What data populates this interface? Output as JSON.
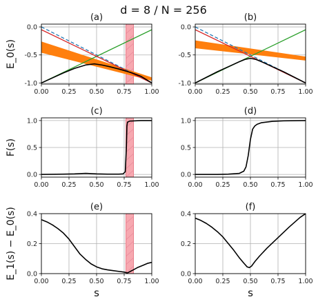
{
  "suptitle": "d = 8 / N = 256",
  "chart_data": [
    {
      "id": "a",
      "title": "(a)",
      "type": "line",
      "ylabel": "E_0(s)",
      "xlabel": "",
      "xlim": [
        0,
        1
      ],
      "ylim": [
        -1.02,
        0.05
      ],
      "xticks": [
        0,
        0.25,
        0.5,
        0.75,
        1.0
      ],
      "xticklabels": [
        "0.00",
        "0.25",
        "0.50",
        "0.75",
        "1.00"
      ],
      "yticks": [
        0,
        -0.5,
        -1.0
      ],
      "yticklabels": [
        "0.0",
        "-0.5",
        "-1.0"
      ],
      "grid": true,
      "shaded_region": {
        "x": [
          0.765,
          0.835
        ],
        "color": "#f7a8b0"
      },
      "bands": [
        {
          "color": "#ff7f0e",
          "x": [
            0,
            1
          ],
          "upper": [
            -0.26,
            -0.9
          ],
          "lower": [
            -0.46,
            -0.96
          ]
        }
      ],
      "series": [
        {
          "color": "#1f77b4",
          "dash": true,
          "x": [
            0,
            1
          ],
          "y": [
            0,
            -1
          ]
        },
        {
          "color": "#2ca02c",
          "x": [
            0,
            1
          ],
          "y": [
            -1,
            -0.05
          ]
        },
        {
          "color": "#d62728",
          "x": [
            0,
            1
          ],
          "y": [
            -0.05,
            -1
          ]
        },
        {
          "color": "#000000",
          "x": [
            0,
            0.1,
            0.2,
            0.3,
            0.4,
            0.48,
            0.55,
            0.62,
            0.7,
            0.77,
            0.82,
            0.9,
            1.0
          ],
          "y": [
            -1.0,
            -0.91,
            -0.82,
            -0.74,
            -0.68,
            -0.66,
            -0.68,
            -0.71,
            -0.75,
            -0.79,
            -0.82,
            -0.88,
            -1.0
          ]
        }
      ]
    },
    {
      "id": "b",
      "title": "(b)",
      "type": "line",
      "ylabel": "",
      "xlabel": "",
      "xlim": [
        0,
        1
      ],
      "ylim": [
        -1.02,
        0.05
      ],
      "xticks": [
        0,
        0.25,
        0.5,
        0.75,
        1.0
      ],
      "xticklabels": [
        "0.00",
        "0.25",
        "0.50",
        "0.75",
        "1.00"
      ],
      "yticks": [
        0,
        -0.5,
        -1.0
      ],
      "yticklabels": [
        "0.0",
        "-0.5",
        "-1.0"
      ],
      "grid": true,
      "bands": [
        {
          "color": "#ff7f0e",
          "x": [
            0,
            1
          ],
          "upper": [
            -0.24,
            -0.53
          ],
          "lower": [
            -0.38,
            -0.6
          ]
        }
      ],
      "series": [
        {
          "color": "#1f77b4",
          "dash": true,
          "x": [
            0,
            1
          ],
          "y": [
            0,
            -1
          ]
        },
        {
          "color": "#2ca02c",
          "x": [
            0,
            1
          ],
          "y": [
            -1,
            -0.05
          ]
        },
        {
          "color": "#d62728",
          "x": [
            0,
            1
          ],
          "y": [
            -0.05,
            -1
          ]
        },
        {
          "color": "#000000",
          "x": [
            0,
            0.1,
            0.2,
            0.3,
            0.4,
            0.45,
            0.5,
            0.55,
            0.6,
            0.7,
            0.8,
            0.9,
            1.0
          ],
          "y": [
            -1.0,
            -0.9,
            -0.8,
            -0.71,
            -0.62,
            -0.58,
            -0.56,
            -0.58,
            -0.62,
            -0.71,
            -0.8,
            -0.9,
            -1.0
          ]
        }
      ]
    },
    {
      "id": "c",
      "title": "(c)",
      "type": "line",
      "ylabel": "F(s)",
      "xlabel": "",
      "xlim": [
        0,
        1
      ],
      "ylim": [
        -0.05,
        1.05
      ],
      "xticks": [
        0,
        0.25,
        0.5,
        0.75,
        1.0
      ],
      "xticklabels": [
        "0.00",
        "0.25",
        "0.50",
        "0.75",
        "1.00"
      ],
      "yticks": [
        0,
        0.5,
        1.0
      ],
      "yticklabels": [
        "0.0",
        "0.5",
        "1.0"
      ],
      "grid": true,
      "shaded_region": {
        "x": [
          0.765,
          0.835
        ],
        "color": "#f7a8b0"
      },
      "series": [
        {
          "color": "#000000",
          "x": [
            0,
            0.2,
            0.3,
            0.4,
            0.5,
            0.6,
            0.7,
            0.74,
            0.76,
            0.77,
            0.775,
            0.78,
            0.8,
            0.9,
            1.0
          ],
          "y": [
            0,
            0.005,
            0.01,
            0.02,
            0.01,
            0.005,
            0.005,
            0.01,
            0.05,
            0.5,
            0.9,
            0.97,
            0.99,
            1.0,
            1.0
          ]
        }
      ]
    },
    {
      "id": "d",
      "title": "(d)",
      "type": "line",
      "ylabel": "",
      "xlabel": "",
      "xlim": [
        0,
        1
      ],
      "ylim": [
        -0.05,
        1.05
      ],
      "xticks": [
        0,
        0.25,
        0.5,
        0.75,
        1.0
      ],
      "xticklabels": [
        "0.00",
        "0.25",
        "0.50",
        "0.75",
        "1.00"
      ],
      "yticks": [
        0,
        0.5,
        1.0
      ],
      "yticklabels": [
        "0.0",
        "0.5",
        "1.0"
      ],
      "grid": true,
      "series": [
        {
          "color": "#000000",
          "x": [
            0,
            0.2,
            0.3,
            0.4,
            0.44,
            0.46,
            0.48,
            0.5,
            0.52,
            0.54,
            0.56,
            0.6,
            0.7,
            0.8,
            1.0
          ],
          "y": [
            0,
            0.0,
            0.005,
            0.02,
            0.06,
            0.14,
            0.35,
            0.65,
            0.84,
            0.9,
            0.93,
            0.96,
            0.985,
            0.995,
            1.0
          ]
        }
      ]
    },
    {
      "id": "e",
      "title": "(e)",
      "type": "line",
      "ylabel": "E_1(s) − E_0(s)",
      "xlabel": "s",
      "xlim": [
        0,
        1
      ],
      "ylim": [
        0,
        0.4
      ],
      "xticks": [
        0,
        0.25,
        0.5,
        0.75,
        1.0
      ],
      "xticklabels": [
        "0.00",
        "0.25",
        "0.50",
        "0.75",
        "1.00"
      ],
      "yticks": [
        0,
        0.2,
        0.4
      ],
      "yticklabels": [
        "0.0",
        "0.2",
        "0.4"
      ],
      "grid": true,
      "shaded_region": {
        "x": [
          0.765,
          0.835
        ],
        "color": "#f7a8b0"
      },
      "series": [
        {
          "color": "#000000",
          "x": [
            0,
            0.05,
            0.1,
            0.15,
            0.2,
            0.25,
            0.3,
            0.35,
            0.4,
            0.45,
            0.5,
            0.55,
            0.6,
            0.65,
            0.7,
            0.75,
            0.78,
            0.82,
            0.87,
            0.92,
            0.96,
            1.0
          ],
          "y": [
            0.36,
            0.345,
            0.325,
            0.3,
            0.27,
            0.23,
            0.18,
            0.13,
            0.095,
            0.065,
            0.045,
            0.032,
            0.025,
            0.02,
            0.015,
            0.01,
            0.005,
            0.02,
            0.04,
            0.055,
            0.068,
            0.075
          ]
        }
      ]
    },
    {
      "id": "f",
      "title": "(f)",
      "type": "line",
      "ylabel": "",
      "xlabel": "s",
      "xlim": [
        0,
        1
      ],
      "ylim": [
        0,
        0.4
      ],
      "xticks": [
        0,
        0.25,
        0.5,
        0.75,
        1.0
      ],
      "xticklabels": [
        "0.00",
        "0.25",
        "0.50",
        "0.75",
        "1.00"
      ],
      "yticks": [
        0,
        0.2,
        0.4
      ],
      "yticklabels": [
        "0.0",
        "0.2",
        "0.4"
      ],
      "grid": true,
      "series": [
        {
          "color": "#000000",
          "x": [
            0,
            0.05,
            0.1,
            0.15,
            0.2,
            0.25,
            0.3,
            0.35,
            0.4,
            0.44,
            0.47,
            0.49,
            0.51,
            0.54,
            0.58,
            0.65,
            0.75,
            0.85,
            0.95,
            1.0
          ],
          "y": [
            0.37,
            0.355,
            0.335,
            0.31,
            0.28,
            0.245,
            0.2,
            0.155,
            0.105,
            0.07,
            0.045,
            0.04,
            0.05,
            0.08,
            0.115,
            0.17,
            0.24,
            0.31,
            0.375,
            0.4
          ]
        }
      ]
    }
  ]
}
